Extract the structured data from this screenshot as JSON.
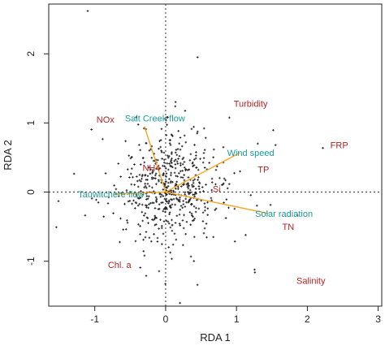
{
  "chart_data": {
    "type": "scatter",
    "xlabel": "RDA 1",
    "ylabel": "RDA 2",
    "xlim": [
      -1.65,
      3.05
    ],
    "ylim": [
      -1.65,
      2.72
    ],
    "x_ticks": [
      -1,
      0,
      1,
      2,
      3
    ],
    "y_ticks": [
      -1,
      0,
      1,
      2
    ],
    "reference_lines": {
      "x": 0,
      "y": 0,
      "style": "dotted"
    },
    "colors": {
      "arrow": "#f5a623",
      "explanatory_label": "#1a9a9a",
      "species_label": "#b22222",
      "points": "#222222"
    },
    "biplot_arrows": [
      {
        "label": "Salt Creek flow",
        "x": -0.3,
        "y": 0.95
      },
      {
        "label": "Wind speed",
        "x": 1.05,
        "y": 0.57
      },
      {
        "label": "Tauwitchere flow",
        "x": -0.72,
        "y": -0.03
      },
      {
        "label": "Solar radiation",
        "x": 1.45,
        "y": -0.31
      }
    ],
    "species_labels": [
      {
        "label": "NOx",
        "x": -0.85,
        "y": 1.05
      },
      {
        "label": "Turbidity",
        "x": 1.2,
        "y": 1.28
      },
      {
        "label": "FRP",
        "x": 2.45,
        "y": 0.68
      },
      {
        "label": "NH4",
        "x": -0.2,
        "y": 0.35
      },
      {
        "label": "TP",
        "x": 1.38,
        "y": 0.33
      },
      {
        "label": "Si",
        "x": 0.72,
        "y": 0.05
      },
      {
        "label": "TN",
        "x": 1.73,
        "y": -0.5
      },
      {
        "label": "Chl. a",
        "x": -0.65,
        "y": -1.05
      },
      {
        "label": "Salinity",
        "x": 2.05,
        "y": -1.28
      }
    ],
    "point_cloud": {
      "center": [
        0.02,
        0.05
      ],
      "spread": [
        0.32,
        0.38
      ],
      "outliers": [
        [
          -1.1,
          2.62
        ],
        [
          0.45,
          1.95
        ],
        [
          1.3,
          0.7
        ],
        [
          1.55,
          0.68
        ],
        [
          1.05,
          0.3
        ],
        [
          -0.95,
          -0.15
        ]
      ]
    }
  }
}
